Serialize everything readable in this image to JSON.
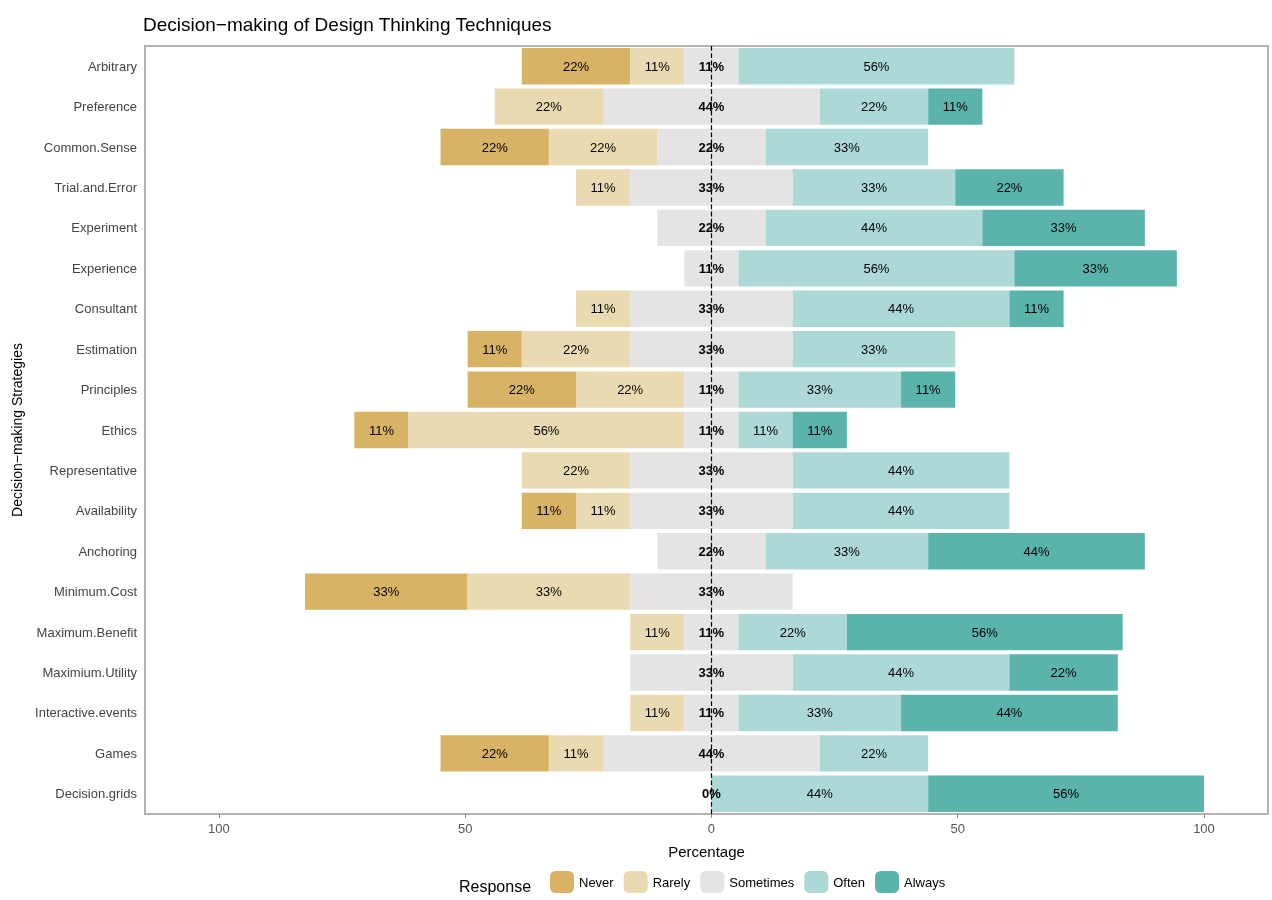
{
  "chart_data": {
    "type": "bar",
    "orientation": "horizontal",
    "title": "Decision−making of Design Thinking Techniques",
    "xlabel": "Percentage",
    "ylabel": "Decision−making Strategies",
    "legend_title": "Response",
    "legend": "bottom",
    "grid": false,
    "categories": [
      "Arbitrary",
      "Preference",
      "Common.Sense",
      "Trial.and.Error",
      "Experiment",
      "Experience",
      "Consultant",
      "Estimation",
      "Principles",
      "Ethics",
      "Representative",
      "Availability",
      "Anchoring",
      "Minimum.Cost",
      "Maximum.Benefit",
      "Maximium.Utility",
      "Interactive.events",
      "Games",
      "Decision.grids"
    ],
    "xlim": [
      -115,
      113
    ],
    "xticks": [
      {
        "value": -100,
        "label": "100"
      },
      {
        "value": -50,
        "label": "50"
      },
      0,
      50,
      100
    ],
    "ref_lines": [
      {
        "axis": "x",
        "value": 0,
        "color": "#000000",
        "line_style": "dashed"
      }
    ],
    "series": [
      {
        "name": "Never",
        "color": "#d8b365",
        "values": [
          22,
          null,
          22,
          null,
          null,
          null,
          null,
          11,
          22,
          11,
          null,
          11,
          null,
          33,
          null,
          null,
          null,
          22,
          null
        ],
        "base": [
          -38.5,
          null,
          -55,
          null,
          null,
          null,
          null,
          -49.5,
          -49.5,
          -72.5,
          null,
          -38.5,
          null,
          -82.5,
          null,
          null,
          null,
          -55,
          null
        ],
        "value_labels": [
          "22%",
          null,
          "22%",
          null,
          null,
          null,
          null,
          "11%",
          "22%",
          "11%",
          null,
          "11%",
          null,
          "33%",
          null,
          null,
          null,
          "22%",
          null
        ]
      },
      {
        "name": "Rarely",
        "color": "#eadab1",
        "values": [
          11,
          22,
          22,
          11,
          null,
          null,
          11,
          22,
          22,
          56,
          22,
          11,
          null,
          33,
          11,
          null,
          11,
          11,
          null
        ],
        "base": [
          -16.5,
          -44,
          -33,
          -27.5,
          null,
          null,
          -27.5,
          -38.5,
          -27.5,
          -61.5,
          -38.5,
          -27.5,
          null,
          -49.5,
          -16.5,
          null,
          -16.5,
          -33,
          null
        ],
        "value_labels": [
          "11%",
          "22%",
          "22%",
          "11%",
          null,
          null,
          "11%",
          "22%",
          "22%",
          "56%",
          "22%",
          "11%",
          null,
          "33%",
          "11%",
          null,
          "11%",
          "11%",
          null
        ]
      },
      {
        "name": "Sometimes",
        "color": "#e4e4e4",
        "values": [
          11,
          44,
          22,
          33,
          22,
          11,
          33,
          33,
          11,
          11,
          33,
          33,
          22,
          33,
          11,
          33,
          11,
          44,
          0
        ],
        "base": [
          -5.5,
          -22,
          -11,
          -16.5,
          -11,
          -5.5,
          -16.5,
          -16.5,
          -5.5,
          -5.5,
          -16.5,
          -16.5,
          -11,
          -16.5,
          -5.5,
          -16.5,
          -5.5,
          -22,
          null
        ],
        "value_labels": [
          "11%",
          "44%",
          "22%",
          "33%",
          "22%",
          "11%",
          "33%",
          "33%",
          "11%",
          "11%",
          "33%",
          "33%",
          "22%",
          "33%",
          "11%",
          "33%",
          "11%",
          "44%",
          "0%"
        ]
      },
      {
        "name": "Often",
        "color": "#acd8d5",
        "values": [
          56,
          22,
          33,
          33,
          44,
          56,
          44,
          33,
          33,
          11,
          44,
          44,
          33,
          null,
          22,
          44,
          33,
          22,
          44
        ],
        "base": [
          5.5,
          22,
          11,
          16.5,
          11,
          5.5,
          16.5,
          16.5,
          5.5,
          5.5,
          16.5,
          16.5,
          11,
          null,
          5.5,
          16.5,
          5.5,
          22,
          0
        ],
        "value_labels": [
          "56%",
          "22%",
          "33%",
          "33%",
          "44%",
          "56%",
          "44%",
          "33%",
          "33%",
          "11%",
          "44%",
          "44%",
          "33%",
          null,
          "22%",
          "44%",
          "33%",
          "22%",
          "44%"
        ]
      },
      {
        "name": "Always",
        "color": "#5ab4ac",
        "values": [
          null,
          11,
          null,
          22,
          33,
          33,
          11,
          null,
          11,
          11,
          null,
          null,
          44,
          null,
          56,
          22,
          44,
          null,
          56
        ],
        "base": [
          null,
          44,
          null,
          49.5,
          55,
          61.5,
          60.5,
          null,
          38.5,
          16.5,
          null,
          null,
          44,
          null,
          27.5,
          60.5,
          38.5,
          null,
          44
        ],
        "value_labels": [
          null,
          "11%",
          null,
          "22%",
          "33%",
          "33%",
          "11%",
          null,
          "11%",
          "11%",
          null,
          null,
          "44%",
          null,
          "56%",
          "22%",
          "44%",
          null,
          "56%"
        ]
      }
    ]
  }
}
